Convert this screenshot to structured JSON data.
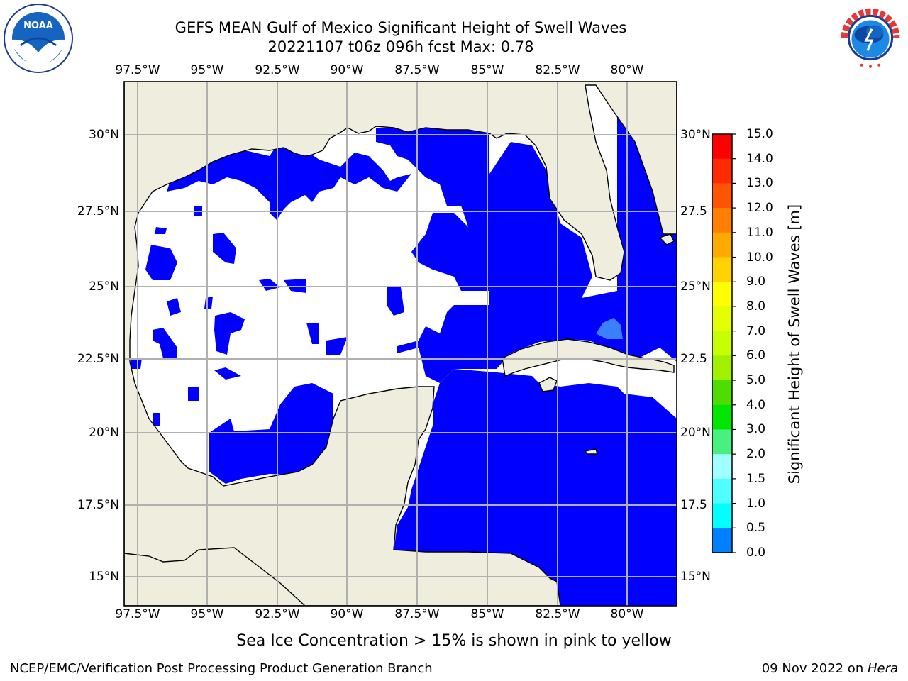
{
  "title": {
    "line1": "GEFS MEAN Gulf of Mexico Significant Height of Swell Waves",
    "line2": "20221107 t06z 096h fcst   Max: 0.78"
  },
  "logos": {
    "left": "noaa-logo",
    "right": "national-weather-service-logo",
    "left_text": "NOAA",
    "right_text": "NATIONAL WEATHER SERVICE"
  },
  "map": {
    "lon_labels": [
      "97.5°W",
      "95°W",
      "92.5°W",
      "90°W",
      "87.5°W",
      "85°W",
      "82.5°W",
      "80°W"
    ],
    "lat_labels": [
      "30°N",
      "27.5°N",
      "25°N",
      "22.5°N",
      "20°N",
      "17.5°N",
      "15°N"
    ],
    "right_lat_labels": [
      "30°N",
      "27.5",
      "25°N",
      "22.5",
      "20°N",
      "17.5",
      "15°N"
    ],
    "colors": {
      "land": "#efedde",
      "sea_no_data": "#ffffff",
      "swell_0_0.5": "#0000ff",
      "swell_0.5_1.0": "#0080ff",
      "grid": "#b0b0b0"
    }
  },
  "colorbar": {
    "label": "Significant Height of Swell Waves [m]",
    "ticks": [
      "15.0",
      "14.0",
      "13.0",
      "12.0",
      "11.0",
      "10.0",
      "9.0",
      "8.0",
      "7.0",
      "6.0",
      "5.0",
      "4.0",
      "3.0",
      "2.0",
      "1.5",
      "1.0",
      "0.5",
      "0.0"
    ],
    "colors": [
      "#ff0000",
      "#ff2a00",
      "#ff5500",
      "#ff8000",
      "#ffaa00",
      "#ffd200",
      "#ffff00",
      "#e4ff00",
      "#c8ff00",
      "#a0f000",
      "#50dc00",
      "#00e600",
      "#48f080",
      "#a0ffff",
      "#50ffff",
      "#00ffff",
      "#0080ff",
      "#0000ff"
    ]
  },
  "footer": {
    "note": "Sea Ice Concentration > 15% is shown in pink to yellow",
    "left": "NCEP/EMC/Verification Post Processing Product Generation Branch",
    "right_date": "09 Nov 2022 on ",
    "right_host": "Hera"
  }
}
